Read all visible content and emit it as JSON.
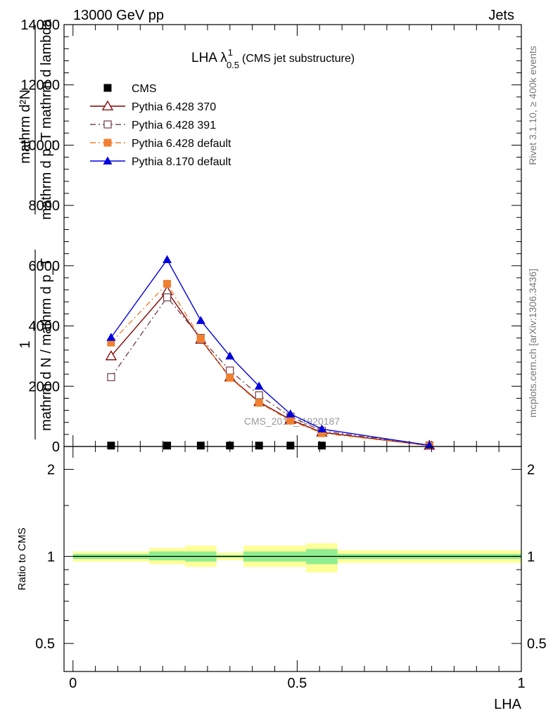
{
  "header": {
    "left": "13000 GeV pp",
    "right": "Jets"
  },
  "side": {
    "rivet": "Rivet 3.1.10, ≥ 400k events",
    "mcplots": "mcplots.cern.ch [arXiv:1306.3436]"
  },
  "watermark": "CMS_2018_I1920187",
  "chart_data": [
    {
      "type": "line",
      "title_main": "LHA λ",
      "title_sup": "1",
      "title_sub": "0.5",
      "title_rest": "(CMS jet substructure)",
      "ylabel_top_num": "mathrm d²N",
      "ylabel_top_den": "mathrm d p_T mathrm d lambda",
      "ylabel_one": "1",
      "ylabel_bottom_den": "mathrm d N / mathrm d p_T",
      "ylim": [
        0,
        14000
      ],
      "y_ticks": [
        0,
        2000,
        4000,
        6000,
        8000,
        10000,
        12000,
        14000
      ],
      "y_tick_labels": [
        "0",
        "2000",
        "4000",
        "6000",
        "8000",
        "10000",
        "12000",
        "14000"
      ],
      "xlim": [
        -0.02,
        1.0
      ],
      "legend_position": "top-left",
      "series": [
        {
          "name": "CMS",
          "color": "#000000",
          "marker": "filled-square",
          "line": "none",
          "x": [
            0.085,
            0.21,
            0.285,
            0.35,
            0.415,
            0.485,
            0.555
          ],
          "y": [
            30,
            30,
            30,
            30,
            30,
            30,
            30
          ]
        },
        {
          "name": "Pythia 6.428 370",
          "color": "#800000",
          "marker": "open-triangle",
          "line": "solid",
          "x": [
            0.085,
            0.21,
            0.285,
            0.35,
            0.415,
            0.485,
            0.555,
            0.795
          ],
          "y": [
            3000,
            5150,
            3550,
            2300,
            1480,
            890,
            470,
            30
          ]
        },
        {
          "name": "Pythia 6.428 391",
          "color": "#7a4a55",
          "marker": "open-square",
          "line": "dash-dot",
          "x": [
            0.085,
            0.21,
            0.285,
            0.35,
            0.415,
            0.485,
            0.555,
            0.795
          ],
          "y": [
            2300,
            4950,
            3600,
            2520,
            1700,
            990,
            520,
            35
          ]
        },
        {
          "name": "Pythia 6.428 default",
          "color": "#f08030",
          "marker": "filled-square",
          "line": "dash-dot",
          "x": [
            0.085,
            0.21,
            0.285,
            0.35,
            0.415,
            0.485,
            0.555,
            0.795
          ],
          "y": [
            3450,
            5400,
            3580,
            2280,
            1450,
            860,
            440,
            28
          ]
        },
        {
          "name": "Pythia 8.170 default",
          "color": "#0000dd",
          "marker": "filled-triangle",
          "line": "solid",
          "x": [
            0.085,
            0.21,
            0.285,
            0.35,
            0.415,
            0.485,
            0.555,
            0.795
          ],
          "y": [
            3620,
            6200,
            4180,
            3000,
            2000,
            1080,
            580,
            40
          ]
        }
      ]
    },
    {
      "type": "area",
      "ylabel": "Ratio to CMS",
      "xlabel": "LHA",
      "ylim": [
        0.4,
        2.4
      ],
      "y_scale": "log",
      "y_ticks": [
        0.5,
        1,
        2
      ],
      "y_tick_labels": [
        "0.5",
        "1",
        "2"
      ],
      "xlim": [
        -0.02,
        1.0
      ],
      "x_ticks": [
        0,
        0.5,
        1
      ],
      "x_tick_labels": [
        "0",
        "0.5",
        "1"
      ],
      "reference": 1,
      "bands": {
        "bin_edges": [
          0.0,
          0.17,
          0.25,
          0.32,
          0.38,
          0.45,
          0.52,
          0.59,
          1.0
        ],
        "outer_color": "#ffff99",
        "inner_color": "#90ee90",
        "outer_low": [
          0.96,
          0.94,
          0.92,
          0.97,
          0.92,
          0.92,
          0.88,
          0.95
        ],
        "outer_high": [
          1.04,
          1.07,
          1.09,
          1.03,
          1.09,
          1.09,
          1.11,
          1.05
        ],
        "inner_low": [
          0.98,
          0.97,
          0.96,
          0.99,
          0.96,
          0.96,
          0.94,
          0.98
        ],
        "inner_high": [
          1.02,
          1.04,
          1.04,
          1.01,
          1.04,
          1.04,
          1.06,
          1.02
        ]
      }
    }
  ]
}
